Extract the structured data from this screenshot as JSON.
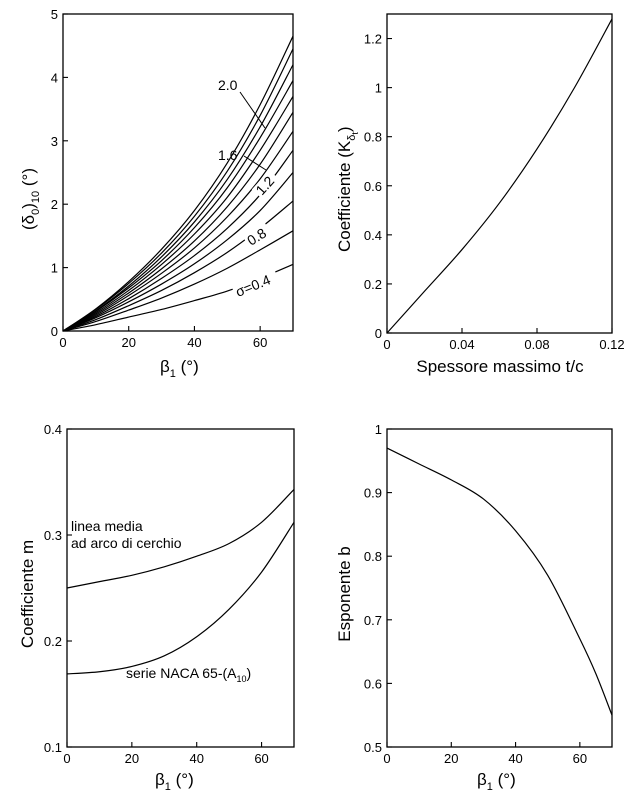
{
  "chart_data": [
    {
      "type": "line",
      "ylabel_main": "(δ",
      "ylabel_sub1": "0",
      "ylabel_mid": ")",
      "ylabel_sub2": "10",
      "ylabel_tail": " (°)",
      "xlabel_main": "β",
      "xlabel_sub": "1",
      "xlabel_tail": " (°)",
      "xlim": [
        0,
        70
      ],
      "ylim": [
        0,
        5
      ],
      "xticks": [
        0,
        20,
        40,
        60
      ],
      "yticks": [
        0,
        1,
        2,
        3,
        4,
        5
      ],
      "annotations": [
        "2.0",
        "1.6",
        "1.2",
        "0.8",
        "σ=0.4"
      ],
      "series": [
        {
          "x": [
            0,
            10,
            20,
            30,
            40,
            50,
            60,
            70
          ],
          "y": [
            0,
            0.1,
            0.22,
            0.34,
            0.48,
            0.63,
            0.83,
            1.05
          ]
        },
        {
          "x": [
            0,
            10,
            20,
            30,
            40,
            50,
            60,
            70
          ],
          "y": [
            0,
            0.15,
            0.33,
            0.52,
            0.74,
            0.99,
            1.28,
            1.58
          ]
        },
        {
          "x": [
            0,
            10,
            20,
            30,
            40,
            50,
            60,
            70
          ],
          "y": [
            0,
            0.18,
            0.4,
            0.64,
            0.92,
            1.24,
            1.62,
            2.05
          ]
        },
        {
          "x": [
            0,
            10,
            20,
            30,
            40,
            50,
            60,
            70
          ],
          "y": [
            0,
            0.21,
            0.46,
            0.74,
            1.06,
            1.44,
            1.9,
            2.5
          ]
        },
        {
          "x": [
            0,
            10,
            20,
            30,
            40,
            50,
            60,
            70
          ],
          "y": [
            0,
            0.23,
            0.51,
            0.83,
            1.19,
            1.62,
            2.15,
            2.85
          ]
        },
        {
          "x": [
            0,
            10,
            20,
            30,
            40,
            50,
            60,
            70
          ],
          "y": [
            0,
            0.25,
            0.56,
            0.91,
            1.31,
            1.8,
            2.4,
            3.15
          ]
        },
        {
          "x": [
            0,
            10,
            20,
            30,
            40,
            50,
            60,
            70
          ],
          "y": [
            0,
            0.27,
            0.6,
            0.98,
            1.42,
            1.96,
            2.63,
            3.45
          ]
        },
        {
          "x": [
            0,
            10,
            20,
            30,
            40,
            50,
            60,
            70
          ],
          "y": [
            0,
            0.29,
            0.64,
            1.05,
            1.53,
            2.11,
            2.85,
            3.7
          ]
        },
        {
          "x": [
            0,
            10,
            20,
            30,
            40,
            50,
            60,
            70
          ],
          "y": [
            0,
            0.31,
            0.68,
            1.11,
            1.63,
            2.26,
            3.05,
            3.95
          ]
        },
        {
          "x": [
            0,
            10,
            20,
            30,
            40,
            50,
            60,
            70
          ],
          "y": [
            0,
            0.32,
            0.71,
            1.17,
            1.72,
            2.39,
            3.22,
            4.2
          ]
        },
        {
          "x": [
            0,
            10,
            20,
            30,
            40,
            50,
            60,
            70
          ],
          "y": [
            0,
            0.34,
            0.75,
            1.23,
            1.81,
            2.52,
            3.4,
            4.45
          ]
        },
        {
          "x": [
            0,
            10,
            20,
            30,
            40,
            50,
            60,
            70
          ],
          "y": [
            0,
            0.35,
            0.78,
            1.29,
            1.9,
            2.65,
            3.57,
            4.65
          ]
        }
      ]
    },
    {
      "type": "line",
      "ylabel_main": "Coefficiente  (K",
      "ylabel_sub1": "δ",
      "ylabel_sub2": "t",
      "ylabel_tail": ")",
      "xlabel": "Spessore massimo t/c",
      "xlim": [
        0,
        0.12
      ],
      "ylim": [
        0,
        1.3
      ],
      "xticks": [
        "0",
        "0.04",
        "0.08",
        "0.12"
      ],
      "xtick_values": [
        0,
        0.04,
        0.08,
        0.12
      ],
      "yticks": [
        "0",
        "0.2",
        "0.4",
        "0.6",
        "0.8",
        "1",
        "1.2"
      ],
      "ytick_values": [
        0,
        0.2,
        0.4,
        0.6,
        0.8,
        1.0,
        1.2
      ],
      "series": [
        {
          "x": [
            0,
            0.02,
            0.04,
            0.06,
            0.08,
            0.1,
            0.12
          ],
          "y": [
            0,
            0.17,
            0.34,
            0.53,
            0.75,
            1.0,
            1.28
          ]
        }
      ]
    },
    {
      "type": "line",
      "ylabel": "Coefficiente m",
      "xlabel_main": "β",
      "xlabel_sub": "1",
      "xlabel_tail": " (°)",
      "xlim": [
        0,
        70
      ],
      "ylim": [
        0.1,
        0.4
      ],
      "xticks": [
        0,
        20,
        40,
        60
      ],
      "yticks": [
        "0.1",
        "0.2",
        "0.3",
        "0.4"
      ],
      "ytick_values": [
        0.1,
        0.2,
        0.3,
        0.4
      ],
      "annotations": [
        "linea media",
        "ad arco di cerchio",
        "serie NACA 65-(A",
        "10",
        ")"
      ],
      "series": [
        {
          "x": [
            0,
            10,
            20,
            30,
            40,
            50,
            60,
            70
          ],
          "y": [
            0.25,
            0.256,
            0.262,
            0.27,
            0.28,
            0.292,
            0.312,
            0.343
          ]
        },
        {
          "x": [
            0,
            10,
            20,
            30,
            40,
            50,
            60,
            70
          ],
          "y": [
            0.169,
            0.171,
            0.176,
            0.186,
            0.204,
            0.23,
            0.265,
            0.312
          ]
        }
      ]
    },
    {
      "type": "line",
      "ylabel": "Esponente b",
      "xlabel_main": "β",
      "xlabel_sub": "1",
      "xlabel_tail": " (°)",
      "xlim": [
        0,
        70
      ],
      "ylim": [
        0.5,
        1.0
      ],
      "xticks": [
        0,
        20,
        40,
        60
      ],
      "yticks": [
        "0.5",
        "0.6",
        "0.7",
        "0.8",
        "0.9",
        "1"
      ],
      "ytick_values": [
        0.5,
        0.6,
        0.7,
        0.8,
        0.9,
        1.0
      ],
      "series": [
        {
          "x": [
            0,
            10,
            20,
            30,
            40,
            50,
            60,
            65,
            70
          ],
          "y": [
            0.97,
            0.945,
            0.92,
            0.89,
            0.84,
            0.77,
            0.67,
            0.615,
            0.55
          ]
        }
      ]
    }
  ]
}
